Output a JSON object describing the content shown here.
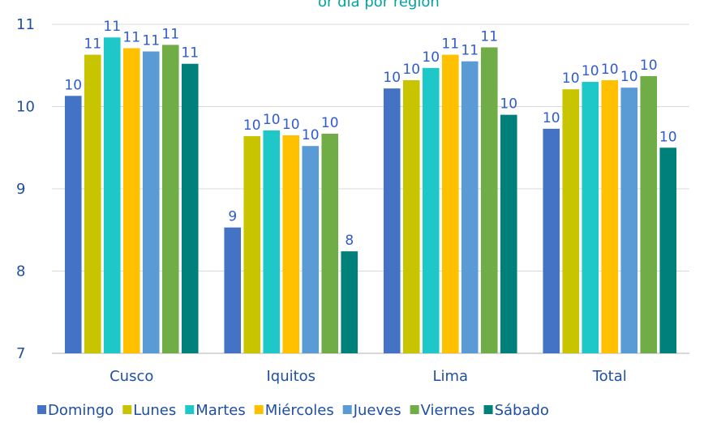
{
  "chart_data": {
    "type": "bar",
    "title_fragment": "or día por región",
    "categories": [
      "Cusco",
      "Iquitos",
      "Lima",
      "Total"
    ],
    "ylim": [
      7,
      11
    ],
    "yticks": [
      7,
      8,
      9,
      10,
      11
    ],
    "grid": true,
    "legend_position": "bottom",
    "series": [
      {
        "name": "Domingo",
        "color": "#4472c4",
        "values": [
          10.13,
          8.53,
          10.22,
          9.73
        ],
        "labels": [
          "10",
          "9",
          "10",
          "10"
        ]
      },
      {
        "name": "Lunes",
        "color": "#c9c400",
        "values": [
          10.63,
          9.64,
          10.32,
          10.21
        ],
        "labels": [
          "11",
          "10",
          "10",
          "10"
        ]
      },
      {
        "name": "Martes",
        "color": "#1ec8c8",
        "values": [
          10.84,
          9.71,
          10.47,
          10.3
        ],
        "labels": [
          "11",
          "10",
          "10",
          "10"
        ]
      },
      {
        "name": "Miércoles",
        "color": "#ffc000",
        "values": [
          10.71,
          9.65,
          10.63,
          10.32
        ],
        "labels": [
          "11",
          "10",
          "11",
          "10"
        ]
      },
      {
        "name": "Jueves",
        "color": "#5b9bd5",
        "values": [
          10.67,
          9.52,
          10.55,
          10.23
        ],
        "labels": [
          "11",
          "10",
          "11",
          "10"
        ]
      },
      {
        "name": "Viernes",
        "color": "#70ad47",
        "values": [
          10.75,
          9.67,
          10.72,
          10.37
        ],
        "labels": [
          "11",
          "10",
          "11",
          "10"
        ]
      },
      {
        "name": "Sábado",
        "color": "#00807a",
        "values": [
          10.52,
          8.24,
          9.9,
          9.5
        ],
        "labels": [
          "11",
          "8",
          "10",
          "10"
        ]
      }
    ]
  }
}
